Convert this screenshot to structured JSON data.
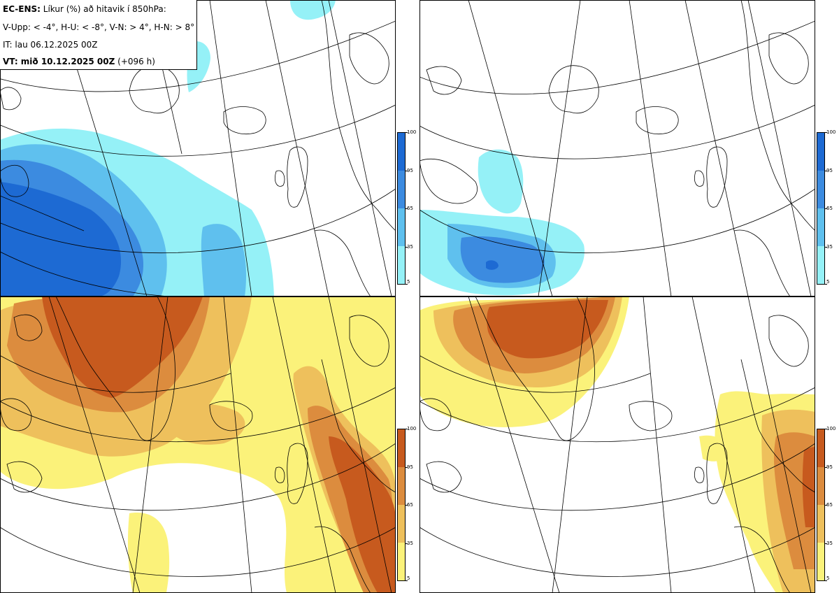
{
  "header": {
    "model": "EC-ENS:",
    "title_rest": " Líkur (%) að hitavik í 850hPa:",
    "thresholds": "V-Upp: < -4°, H-U: < -8°, V-N: > 4°, H-N: > 8°",
    "initial_time": "IT: lau 06.12.2025 00Z",
    "valid_label": "VT: mið 10.12.2025 00Z",
    "valid_lead": " (+096 h)"
  },
  "panels": [
    {
      "name": "V-Upp",
      "desc": "probability of anomaly < -4°",
      "scale": "cold"
    },
    {
      "name": "H-U",
      "desc": "probability of anomaly < -8°",
      "scale": "cold"
    },
    {
      "name": "V-N",
      "desc": "probability of anomaly > 4°",
      "scale": "warm"
    },
    {
      "name": "H-N",
      "desc": "probability of anomaly > 8°",
      "scale": "warm"
    }
  ],
  "colorbar": {
    "ticks": [
      "100",
      "95",
      "65",
      "35",
      "5"
    ],
    "cold_colors": [
      "#1d6ad3",
      "#3c8be0",
      "#5fc0ee",
      "#95f1f7"
    ],
    "warm_colors": [
      "#c75a1e",
      "#dc8c3e",
      "#eec05c",
      "#fbf27a"
    ]
  }
}
